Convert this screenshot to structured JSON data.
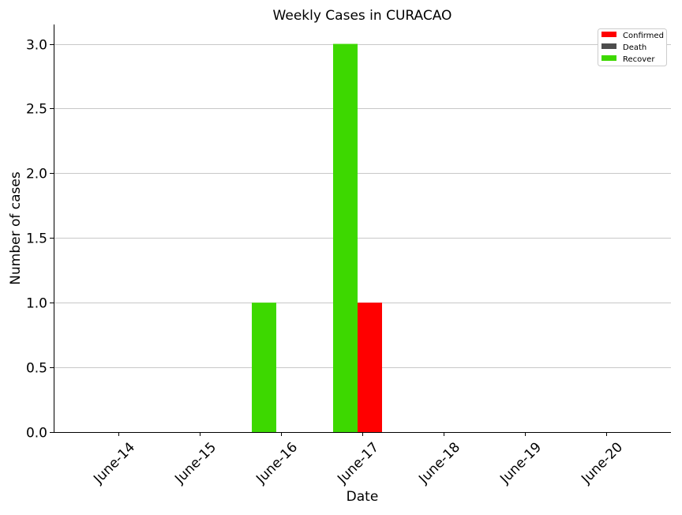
{
  "chart_data": {
    "type": "bar",
    "title": "Weekly Cases in CURACAO",
    "xlabel": "Date",
    "ylabel": "Number of cases",
    "categories": [
      "June-14",
      "June-15",
      "June-16",
      "June-17",
      "June-18",
      "June-19",
      "June-20"
    ],
    "series": [
      {
        "name": "Confirmed",
        "color": "#ff0000",
        "values": [
          0,
          0,
          0,
          1,
          0,
          0,
          0
        ]
      },
      {
        "name": "Death",
        "color": "#4d4d4d",
        "values": [
          0,
          0,
          0,
          0,
          0,
          0,
          0
        ]
      },
      {
        "name": "Recover",
        "color": "#3dd800",
        "values": [
          0,
          0,
          1,
          3,
          0,
          0,
          0
        ]
      }
    ],
    "ylim": [
      0,
      3.15
    ],
    "yticks": [
      "0.0",
      "0.5",
      "1.0",
      "1.5",
      "2.0",
      "2.5",
      "3.0"
    ],
    "grid": "horizontal",
    "legend_position": "top-right"
  }
}
